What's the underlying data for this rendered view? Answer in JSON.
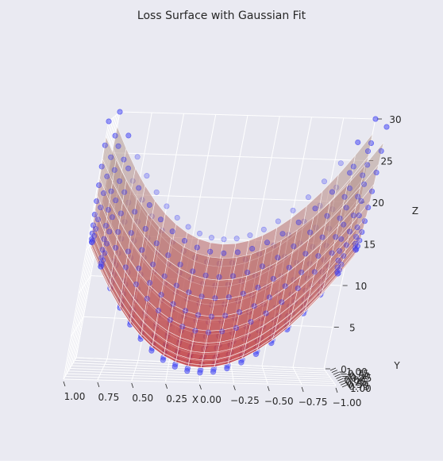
{
  "chart_data": {
    "type": "scatter",
    "title": "Loss Surface with Gaussian Fit",
    "xlabel": "X",
    "ylabel": "Y",
    "zlabel": "Z",
    "x_ticks": [
      "1.00",
      "0.75",
      "0.50",
      "0.25",
      "0.00",
      "−0.25",
      "−0.50",
      "−0.75",
      "−1.00"
    ],
    "y_ticks": [
      "−1.00",
      "−0.75",
      "−0.50",
      "−0.25",
      "0.00",
      "0.25",
      "0.50",
      "0.75",
      "1.00"
    ],
    "z_ticks": [
      "0",
      "5",
      "10",
      "15",
      "20",
      "25",
      "30"
    ],
    "xlim": [
      -1.0,
      1.0
    ],
    "ylim": [
      -1.0,
      1.0
    ],
    "zlim": [
      0,
      30
    ],
    "grid": true,
    "series": [
      {
        "marker": "scatter-points",
        "color": "#3a3cf5",
        "surface": "z = 15*x^2 + 15*y^2 (approx)",
        "note_range": [
          0,
          30
        ]
      },
      {
        "marker": "fitted-surface",
        "color": "#c0282c"
      }
    ],
    "grid_resolution": 21
  },
  "colors": {
    "background": "#eaeaf2",
    "pane_back": "#e8e8f0",
    "pane_side": "#dfdfe9",
    "pane_floor": "#e2e2eb",
    "grid": "#ffffff",
    "scatter": "#3a3cf5",
    "surface_low": "#c0282c",
    "surface_high": "#b49a92"
  }
}
